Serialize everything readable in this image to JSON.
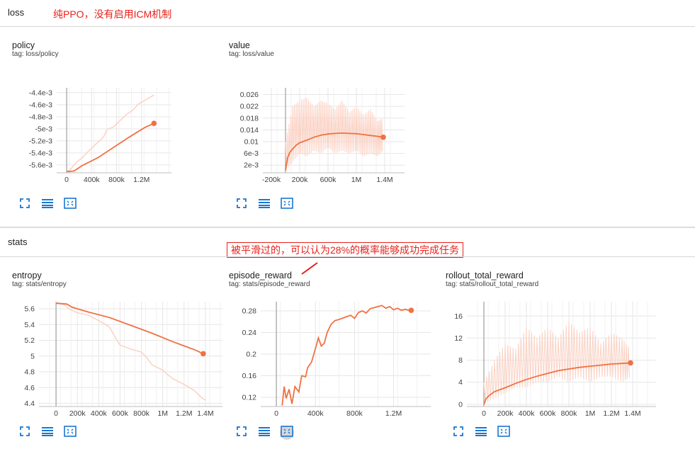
{
  "sections": {
    "loss": {
      "title": "loss"
    },
    "stats": {
      "title": "stats"
    }
  },
  "annotations": {
    "ppo_note": "纯PPO，没有启用ICM机制",
    "reward_note": "被平滑过的，可以认为28%的概率能够成功完成任务"
  },
  "colors": {
    "accent": "#f07142",
    "raw_line": "#fbd2c4",
    "annotation": "#e8211a",
    "toolbar_icon": "#1976d2"
  },
  "toolbar_icons": [
    "fullscreen-icon",
    "data-table-icon",
    "fit-domain-icon"
  ],
  "cards": {
    "policy": {
      "title": "policy",
      "tag": "tag: loss/policy"
    },
    "value": {
      "title": "value",
      "tag": "tag: loss/value"
    },
    "entropy": {
      "title": "entropy",
      "tag": "tag: stats/entropy"
    },
    "episode_reward": {
      "title": "episode_reward",
      "tag": "tag: stats/episode_reward"
    },
    "rollout_total_reward": {
      "title": "rollout_total_reward",
      "tag": "tag: stats/rollout_total_reward"
    }
  },
  "chart_data": [
    {
      "id": "policy",
      "type": "line",
      "xticks": [
        {
          "v": 0,
          "label": "0"
        },
        {
          "v": 400000,
          "label": "400k"
        },
        {
          "v": 800000,
          "label": "800k"
        },
        {
          "v": 1200000,
          "label": "1.2M"
        }
      ],
      "yticks": [
        {
          "v": -0.0044,
          "label": "-4.4e-3"
        },
        {
          "v": -0.0046,
          "label": "-4.6e-3"
        },
        {
          "v": -0.0048,
          "label": "-4.8e-3"
        },
        {
          "v": -0.005,
          "label": "-5e-3"
        },
        {
          "v": -0.0052,
          "label": "-5.2e-3"
        },
        {
          "v": -0.0054,
          "label": "-5.4e-3"
        },
        {
          "v": -0.0056,
          "label": "-5.6e-3"
        }
      ],
      "xlim": [
        -160000,
        1680000
      ],
      "ylim": [
        -0.00573,
        -0.00432
      ],
      "smoothed": {
        "x": [
          0,
          120000,
          250000,
          500000,
          750000,
          1000000,
          1250000,
          1400000
        ],
        "y": [
          -0.00571,
          -0.0057,
          -0.00561,
          -0.00548,
          -0.00531,
          -0.00514,
          -0.00498,
          -0.00491
        ]
      },
      "raw": {
        "x": [
          0,
          80000,
          150000,
          250000,
          350000,
          450000,
          550000,
          600000,
          650000,
          750000,
          850000,
          950000,
          1050000,
          1150000,
          1250000,
          1350000,
          1400000
        ],
        "y": [
          -0.00572,
          -0.00565,
          -0.00556,
          -0.00548,
          -0.00537,
          -0.00527,
          -0.00518,
          -0.00512,
          -0.00501,
          -0.00497,
          -0.00487,
          -0.00477,
          -0.0047,
          -0.00459,
          -0.00453,
          -0.00447,
          -0.00444
        ]
      }
    },
    {
      "id": "value",
      "type": "line",
      "xticks": [
        {
          "v": -200000,
          "label": "-200k"
        },
        {
          "v": 200000,
          "label": "200k"
        },
        {
          "v": 600000,
          "label": "600k"
        },
        {
          "v": 1000000,
          "label": "1M"
        },
        {
          "v": 1400000,
          "label": "1.4M"
        }
      ],
      "yticks": [
        {
          "v": 0.026,
          "label": "0.026"
        },
        {
          "v": 0.022,
          "label": "0.022"
        },
        {
          "v": 0.018,
          "label": "0.018"
        },
        {
          "v": 0.014,
          "label": "0.014"
        },
        {
          "v": 0.01,
          "label": "0.01"
        },
        {
          "v": 0.006,
          "label": "6e-3"
        },
        {
          "v": 0.002,
          "label": "2e-3"
        }
      ],
      "xlim": [
        -320000,
        1680000
      ],
      "ylim": [
        -0.0006,
        0.0283
      ],
      "smoothed": {
        "x": [
          0,
          30000,
          60000,
          100000,
          150000,
          200000,
          300000,
          400000,
          500000,
          600000,
          700000,
          800000,
          900000,
          1000000,
          1100000,
          1200000,
          1300000,
          1380000
        ],
        "y": [
          0.0003,
          0.0045,
          0.0063,
          0.0075,
          0.0088,
          0.0096,
          0.0105,
          0.0115,
          0.0122,
          0.0126,
          0.0128,
          0.0129,
          0.0128,
          0.0127,
          0.0124,
          0.0121,
          0.0118,
          0.0115
        ]
      },
      "raw_band": {
        "x": [
          0,
          100000,
          200000,
          300000,
          400000,
          500000,
          600000,
          700000,
          800000,
          900000,
          1000000,
          1100000,
          1200000,
          1300000,
          1380000
        ],
        "ymax": [
          0.01,
          0.022,
          0.024,
          0.025,
          0.022,
          0.024,
          0.023,
          0.021,
          0.024,
          0.02,
          0.022,
          0.019,
          0.021,
          0.017,
          0.018
        ],
        "ymin": [
          0.0,
          0.003,
          0.006,
          0.005,
          0.007,
          0.006,
          0.008,
          0.006,
          0.007,
          0.006,
          0.007,
          0.005,
          0.006,
          0.005,
          0.007
        ]
      }
    },
    {
      "id": "entropy",
      "type": "line",
      "xticks": [
        {
          "v": 0,
          "label": "0"
        },
        {
          "v": 200000,
          "label": "200k"
        },
        {
          "v": 400000,
          "label": "400k"
        },
        {
          "v": 600000,
          "label": "600k"
        },
        {
          "v": 800000,
          "label": "800k"
        },
        {
          "v": 1000000,
          "label": "1M"
        },
        {
          "v": 1200000,
          "label": "1.2M"
        },
        {
          "v": 1400000,
          "label": "1.4M"
        }
      ],
      "yticks": [
        {
          "v": 5.6,
          "label": "5.6"
        },
        {
          "v": 5.4,
          "label": "5.4"
        },
        {
          "v": 5.2,
          "label": "5.2"
        },
        {
          "v": 5.0,
          "label": "5"
        },
        {
          "v": 4.8,
          "label": "4.8"
        },
        {
          "v": 4.6,
          "label": "4.6"
        },
        {
          "v": 4.4,
          "label": "4.4"
        }
      ],
      "xlim": [
        -160000,
        1560000
      ],
      "ylim": [
        4.36,
        5.69
      ],
      "smoothed": {
        "x": [
          0,
          100000,
          150000,
          300000,
          500000,
          700000,
          900000,
          1100000,
          1300000,
          1380000
        ],
        "y": [
          5.67,
          5.66,
          5.62,
          5.56,
          5.49,
          5.39,
          5.29,
          5.18,
          5.08,
          5.03
        ]
      },
      "raw": {
        "x": [
          0,
          80000,
          120000,
          200000,
          300000,
          400000,
          500000,
          550000,
          600000,
          700000,
          800000,
          850000,
          900000,
          1000000,
          1050000,
          1100000,
          1200000,
          1300000,
          1350000,
          1400000
        ],
        "y": [
          5.68,
          5.65,
          5.6,
          5.55,
          5.52,
          5.45,
          5.37,
          5.25,
          5.14,
          5.09,
          5.05,
          4.98,
          4.89,
          4.82,
          4.76,
          4.71,
          4.64,
          4.56,
          4.49,
          4.44
        ]
      }
    },
    {
      "id": "episode_reward",
      "type": "line",
      "xticks": [
        {
          "v": 0,
          "label": "0"
        },
        {
          "v": 400000,
          "label": "400k"
        },
        {
          "v": 800000,
          "label": "800k"
        },
        {
          "v": 1200000,
          "label": "1.2M"
        }
      ],
      "yticks": [
        {
          "v": 0.28,
          "label": "0.28"
        },
        {
          "v": 0.24,
          "label": "0.24"
        },
        {
          "v": 0.2,
          "label": "0.2"
        },
        {
          "v": 0.16,
          "label": "0.16"
        },
        {
          "v": 0.12,
          "label": "0.12"
        }
      ],
      "xlim": [
        -160000,
        1580000
      ],
      "ylim": [
        0.103,
        0.297
      ],
      "smoothed": {
        "x": [
          60000,
          80000,
          100000,
          130000,
          160000,
          190000,
          230000,
          260000,
          300000,
          320000,
          360000,
          400000,
          430000,
          460000,
          490000,
          520000,
          560000,
          600000,
          640000,
          700000,
          760000,
          800000,
          840000,
          880000,
          920000,
          960000,
          1000000,
          1040000,
          1080000,
          1120000,
          1160000,
          1200000,
          1240000,
          1280000,
          1320000,
          1360000,
          1380000
        ],
        "y": [
          0.105,
          0.14,
          0.118,
          0.135,
          0.108,
          0.14,
          0.13,
          0.16,
          0.158,
          0.175,
          0.185,
          0.21,
          0.23,
          0.215,
          0.22,
          0.24,
          0.255,
          0.262,
          0.264,
          0.268,
          0.272,
          0.266,
          0.277,
          0.28,
          0.276,
          0.284,
          0.286,
          0.288,
          0.29,
          0.285,
          0.288,
          0.282,
          0.285,
          0.281,
          0.283,
          0.281,
          0.281
        ]
      }
    },
    {
      "id": "rollout_total_reward",
      "type": "line",
      "xticks": [
        {
          "v": 0,
          "label": "0"
        },
        {
          "v": 200000,
          "label": "200k"
        },
        {
          "v": 400000,
          "label": "400k"
        },
        {
          "v": 600000,
          "label": "600k"
        },
        {
          "v": 800000,
          "label": "800k"
        },
        {
          "v": 1000000,
          "label": "1M"
        },
        {
          "v": 1200000,
          "label": "1.2M"
        },
        {
          "v": 1400000,
          "label": "1.4M"
        }
      ],
      "yticks": [
        {
          "v": 16,
          "label": "16"
        },
        {
          "v": 12,
          "label": "12"
        },
        {
          "v": 8,
          "label": "8"
        },
        {
          "v": 4,
          "label": "4"
        },
        {
          "v": 0,
          "label": "0"
        }
      ],
      "xlim": [
        -160000,
        1620000
      ],
      "ylim": [
        -0.4,
        18.6
      ],
      "smoothed": {
        "x": [
          0,
          20000,
          50000,
          100000,
          200000,
          300000,
          400000,
          500000,
          600000,
          700000,
          800000,
          900000,
          1000000,
          1100000,
          1200000,
          1300000,
          1380000
        ],
        "y": [
          0,
          1.0,
          1.6,
          2.3,
          3.0,
          3.8,
          4.5,
          5.1,
          5.6,
          6.1,
          6.4,
          6.7,
          6.9,
          7.1,
          7.3,
          7.4,
          7.5
        ]
      },
      "raw_band": {
        "x": [
          0,
          100000,
          200000,
          300000,
          400000,
          500000,
          600000,
          700000,
          800000,
          900000,
          1000000,
          1100000,
          1200000,
          1300000,
          1380000
        ],
        "ymax": [
          4,
          8,
          11,
          10,
          14,
          12,
          14,
          12,
          15,
          13,
          14,
          11,
          13,
          12,
          10
        ],
        "ymin": [
          0,
          1,
          2,
          3,
          3,
          4,
          4,
          5,
          4,
          5,
          4,
          5,
          5,
          4,
          5
        ]
      }
    }
  ]
}
